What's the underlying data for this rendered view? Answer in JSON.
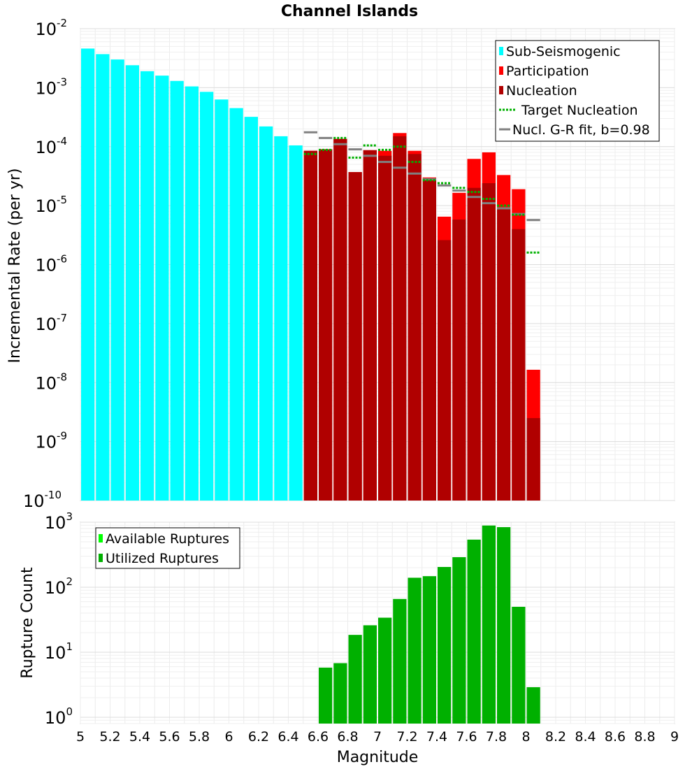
{
  "chart_data": [
    {
      "type": "bar",
      "title": "Channel Islands",
      "ylabel": "Incremental Rate (per yr)",
      "xlabel": "",
      "yscale": "log",
      "xlim": [
        5,
        9
      ],
      "ylim": [
        1e-10,
        0.01
      ],
      "y_ticks": [
        {
          "base": "10",
          "exp": "-10"
        },
        {
          "base": "10",
          "exp": "-9"
        },
        {
          "base": "10",
          "exp": "-8"
        },
        {
          "base": "10",
          "exp": "-7"
        },
        {
          "base": "10",
          "exp": "-6"
        },
        {
          "base": "10",
          "exp": "-5"
        },
        {
          "base": "10",
          "exp": "-4"
        },
        {
          "base": "10",
          "exp": "-3"
        },
        {
          "base": "10",
          "exp": "-2"
        }
      ],
      "legend": [
        {
          "label": "Sub-Seismogenic",
          "color": "#00ffff",
          "kind": "bar"
        },
        {
          "label": "Participation",
          "color": "#ff0000",
          "kind": "bar"
        },
        {
          "label": "Nucleation",
          "color": "#b00000",
          "kind": "bar"
        },
        {
          "label": "Target Nucleation",
          "color": "#00b000",
          "kind": "dotted"
        },
        {
          "label": "Nucl. G-R fit, b=0.98",
          "color": "#808080",
          "kind": "line"
        }
      ],
      "bin_width": 0.1,
      "series": [
        {
          "name": "Sub-Seismogenic",
          "color": "#00ffff",
          "x": [
            5.05,
            5.15,
            5.25,
            5.35,
            5.45,
            5.55,
            5.65,
            5.75,
            5.85,
            5.95,
            6.05,
            6.15,
            6.25,
            6.35,
            6.45
          ],
          "values": [
            0.0046,
            0.0037,
            0.003,
            0.0024,
            0.0019,
            0.0016,
            0.0013,
            0.00105,
            0.00085,
            0.00063,
            0.00045,
            0.00032,
            0.00022,
            0.00015,
            0.000105
          ]
        },
        {
          "name": "Participation",
          "color": "#ff0000",
          "x": [
            6.55,
            6.65,
            6.75,
            6.85,
            6.95,
            7.05,
            7.15,
            7.25,
            7.35,
            7.45,
            7.55,
            7.65,
            7.75,
            7.85,
            7.95,
            8.05
          ],
          "values": [
            8.5e-05,
            9e-05,
            0.000135,
            3.7e-05,
            8.7e-05,
            8.5e-05,
            0.00017,
            8.5e-05,
            3e-05,
            6.5e-06,
            1.65e-05,
            6.2e-05,
            8e-05,
            3.3e-05,
            1.9e-05,
            1.65e-08
          ]
        },
        {
          "name": "Nucleation",
          "color": "#b00000",
          "x": [
            6.55,
            6.65,
            6.75,
            6.85,
            6.95,
            7.05,
            7.15,
            7.25,
            7.35,
            7.45,
            7.55,
            7.65,
            7.75,
            7.85,
            7.95,
            8.05
          ],
          "values": [
            8.5e-05,
            9e-05,
            0.000135,
            3.7e-05,
            8.7e-05,
            7e-05,
            0.00015,
            7.5e-05,
            2.8e-05,
            2.6e-06,
            5.8e-06,
            2e-05,
            2.4e-05,
            9e-06,
            4e-06,
            2.5e-09
          ]
        },
        {
          "name": "Target Nucleation",
          "color": "#00b000",
          "x": [
            6.55,
            6.65,
            6.75,
            6.85,
            6.95,
            7.05,
            7.15,
            7.25,
            7.35,
            7.45,
            7.55,
            7.65,
            7.75,
            7.85,
            7.95,
            8.05
          ],
          "values": [
            7.5e-05,
            8.8e-05,
            0.00014,
            6.5e-05,
            0.000105,
            8.8e-05,
            0.0001,
            5.5e-05,
            2.7e-05,
            2.4e-05,
            2e-05,
            1.7e-05,
            1.3e-05,
            1e-05,
            7e-06,
            1.6e-06
          ]
        },
        {
          "name": "Nucl. G-R fit, b=0.98",
          "color": "#808080",
          "x": [
            6.55,
            6.65,
            6.75,
            6.85,
            6.95,
            7.05,
            7.15,
            7.25,
            7.35,
            7.45,
            7.55,
            7.65,
            7.75,
            7.85,
            7.95,
            8.05
          ],
          "values": [
            0.000175,
            0.00014,
            0.00011,
            9e-05,
            7e-05,
            5.5e-05,
            4.4e-05,
            3.5e-05,
            2.8e-05,
            2.2e-05,
            1.8e-05,
            1.4e-05,
            1.1e-05,
            9e-06,
            7.2e-06,
            5.7e-06
          ]
        }
      ]
    },
    {
      "type": "bar",
      "title": "",
      "ylabel": "Rupture Count",
      "xlabel": "Magnitude",
      "yscale": "log",
      "xlim": [
        5,
        9
      ],
      "ylim": [
        0.8,
        1000
      ],
      "y_ticks": [
        {
          "base": "10",
          "exp": "0"
        },
        {
          "base": "10",
          "exp": "1"
        },
        {
          "base": "10",
          "exp": "2"
        },
        {
          "base": "10",
          "exp": "3"
        }
      ],
      "x_ticks": [
        "5",
        "5.2",
        "5.4",
        "5.6",
        "5.8",
        "6",
        "6.2",
        "6.4",
        "6.6",
        "6.8",
        "7",
        "7.2",
        "7.4",
        "7.6",
        "7.8",
        "8",
        "8.2",
        "8.4",
        "8.6",
        "8.8",
        "9"
      ],
      "legend": [
        {
          "label": "Available Ruptures",
          "color": "#00ff00",
          "kind": "bar"
        },
        {
          "label": "Utilized Ruptures",
          "color": "#00b000",
          "kind": "bar"
        }
      ],
      "bin_width": 0.1,
      "series": [
        {
          "name": "Utilized Ruptures",
          "color": "#00b000",
          "x": [
            6.65,
            6.75,
            6.85,
            6.95,
            7.05,
            7.15,
            7.25,
            7.35,
            7.45,
            7.55,
            7.65,
            7.75,
            7.85,
            7.95,
            8.05
          ],
          "values": [
            5.8,
            6.8,
            18.5,
            26,
            34,
            66,
            140,
            148,
            205,
            290,
            540,
            890,
            840,
            50,
            2.9
          ]
        }
      ]
    }
  ]
}
